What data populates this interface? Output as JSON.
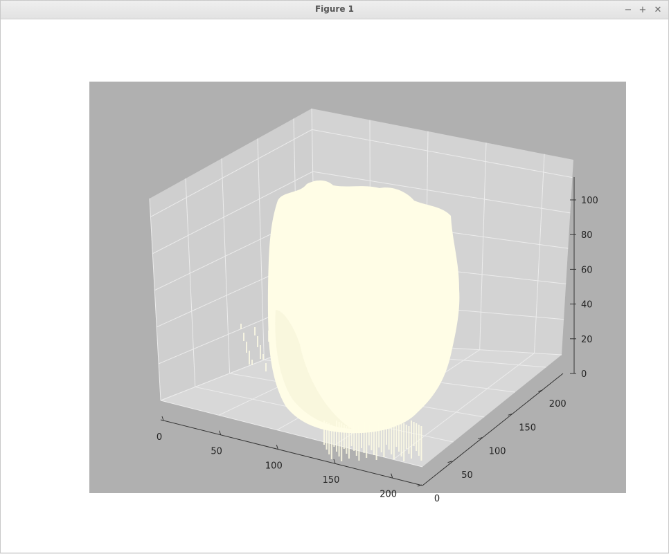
{
  "window": {
    "title": "Figure 1",
    "controls": {
      "minimize": "−",
      "maximize": "+",
      "close": "✕"
    }
  },
  "colors": {
    "axes_bg": "#b0b0b0",
    "pane_left": "#cfcfcf",
    "pane_back": "#d3d3d3",
    "pane_floor": "#d8d8d8",
    "surface": "#fffde6"
  },
  "chart_data": {
    "type": "3d-surface",
    "grid": true,
    "x_ticks": [
      "0",
      "50",
      "100",
      "150",
      "200"
    ],
    "y_ticks": [
      "0",
      "50",
      "100",
      "150",
      "200"
    ],
    "z_ticks": [
      "0",
      "20",
      "40",
      "60",
      "80",
      "100"
    ],
    "xlim": [
      0,
      225
    ],
    "ylim": [
      0,
      225
    ],
    "zlim": [
      0,
      110
    ]
  }
}
